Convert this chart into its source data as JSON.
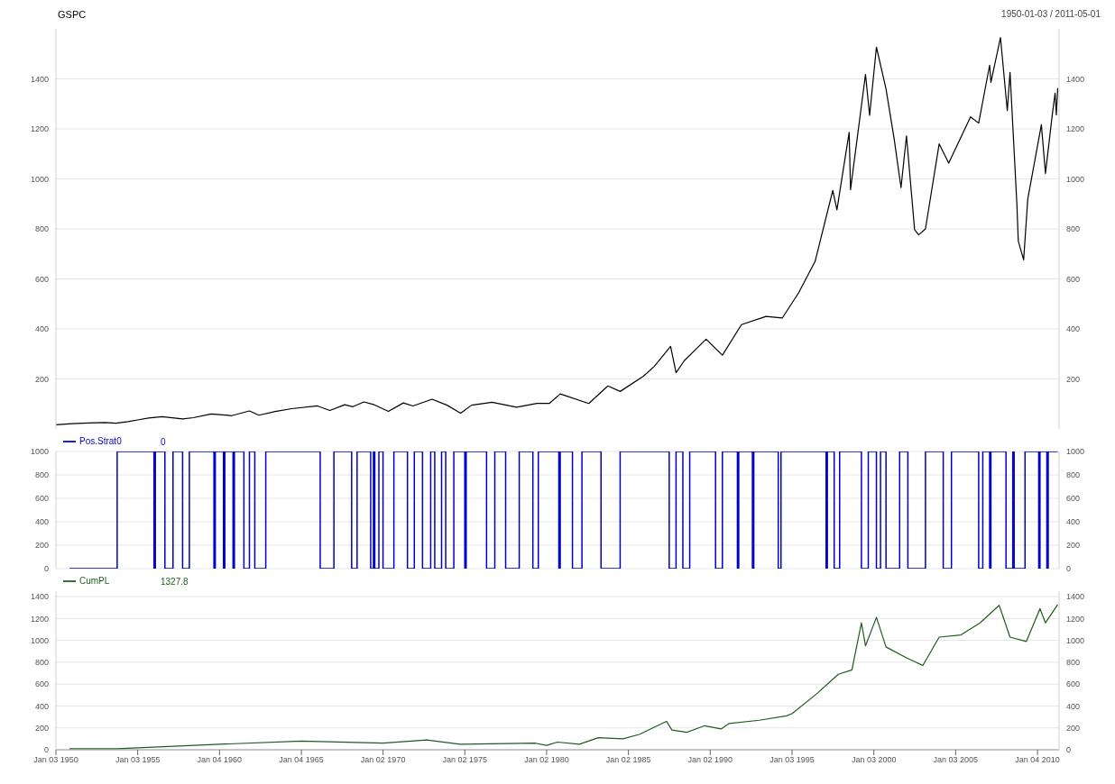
{
  "chart_data": [
    {
      "type": "line",
      "title": "GSPC",
      "subtitle": "1950-01-03 / 2011-05-01",
      "x": [
        "1950-01-03",
        "1951-01",
        "1952-01",
        "1953-01",
        "1953-09",
        "1954-06",
        "1955-01",
        "1955-09",
        "1956-07",
        "1957-10",
        "1958-06",
        "1959-07",
        "1960-10",
        "1961-11",
        "1962-06",
        "1963-06",
        "1964-06",
        "1966-01",
        "1966-10",
        "1967-09",
        "1968-03",
        "1968-11",
        "1969-06",
        "1970-05",
        "1971-04",
        "1971-11",
        "1973-01",
        "1973-12",
        "1974-10",
        "1975-06",
        "1976-09",
        "1978-03",
        "1979-06",
        "1980-03",
        "1980-11",
        "1982-08",
        "1983-10",
        "1984-07",
        "1985-12",
        "1986-08",
        "1987-08",
        "1987-12",
        "1988-06",
        "1989-10",
        "1990-10",
        "1991-12",
        "1993-06",
        "1994-06",
        "1995-06",
        "1996-06",
        "1997-07",
        "1997-10",
        "1998-07",
        "1998-08",
        "1999-07",
        "1999-10",
        "2000-03",
        "2000-10",
        "2001-04",
        "2001-09",
        "2002-01",
        "2002-07",
        "2002-10",
        "2003-03",
        "2004-01",
        "2004-08",
        "2005-12",
        "2006-06",
        "2007-02",
        "2007-03",
        "2007-10",
        "2008-03",
        "2008-05",
        "2008-10",
        "2008-11",
        "2009-03",
        "2009-06",
        "2010-04",
        "2010-07",
        "2010-12",
        "2011-02",
        "2011-03",
        "2011-04"
      ],
      "series": [
        {
          "color": "#000000",
          "values": [
            17,
            21,
            24,
            26,
            23,
            29,
            36,
            44,
            49,
            40,
            45,
            60,
            53,
            72,
            55,
            70,
            81,
            92,
            74,
            97,
            89,
            108,
            98,
            70,
            104,
            92,
            119,
            95,
            63,
            95,
            107,
            87,
            102,
            102,
            140,
            102,
            172,
            150,
            211,
            250,
            330,
            225,
            273,
            359,
            295,
            417,
            450,
            444,
            545,
            670,
            954,
            876,
            1186,
            957,
            1418,
            1254,
            1527,
            1360,
            1160,
            965,
            1172,
            797,
            776,
            800,
            1140,
            1063,
            1248,
            1223,
            1455,
            1386,
            1565,
            1273,
            1426,
            899,
            752,
            676,
            919,
            1217,
            1022,
            1257,
            1343,
            1256,
            1363
          ]
        }
      ],
      "xlim": [
        "1950-01-03",
        "2011-05-01"
      ],
      "ylim": [
        0,
        1600
      ],
      "yticks": [
        200,
        400,
        600,
        800,
        1000,
        1200,
        1400
      ],
      "y2lim": [
        0,
        1600
      ],
      "y2ticks": [
        200,
        400,
        600,
        800,
        1000,
        1200,
        1400
      ],
      "grid": "y",
      "tick_labels": "y",
      "line_style": "solid"
    },
    {
      "type": "step",
      "annotations": [
        "0"
      ],
      "legend": "top left",
      "series": [
        {
          "name": "Pos.Strat0",
          "color": "#0000cc",
          "x": [
            "1950-11",
            "1953-10",
            "1956-01",
            "1956-02",
            "1956-09",
            "1957-03",
            "1957-10",
            "1958-03",
            "1959-09",
            "1959-10",
            "1960-04",
            "1960-05",
            "1960-11",
            "1960-12",
            "1961-07",
            "1961-11",
            "1962-03",
            "1962-11",
            "1966-03",
            "1967-01",
            "1968-02",
            "1968-06",
            "1969-04",
            "1969-06",
            "1969-07",
            "1969-10",
            "1970-01",
            "1970-09",
            "1971-07",
            "1971-12",
            "1972-06",
            "1972-12",
            "1973-03",
            "1973-08",
            "1973-11",
            "1974-05",
            "1975-01",
            "1975-02",
            "1976-05",
            "1976-11",
            "1977-07",
            "1978-05",
            "1979-03",
            "1979-07",
            "1980-10",
            "1980-11",
            "1981-08",
            "1982-03",
            "1983-05",
            "1984-07",
            "1987-07",
            "1987-12",
            "1988-05",
            "1988-10",
            "1990-05",
            "1990-10",
            "1991-09",
            "1991-10",
            "1992-08",
            "1992-09",
            "1994-03",
            "1994-05",
            "1997-02",
            "1997-03",
            "1997-08",
            "1997-12",
            "1999-04",
            "1999-09",
            "2000-03",
            "2000-06",
            "2000-10",
            "2001-08",
            "2002-02",
            "2003-03",
            "2004-04",
            "2004-10",
            "2006-06",
            "2006-09",
            "2007-02",
            "2007-03",
            "2008-02",
            "2008-07",
            "2008-08",
            "2009-04",
            "2010-02",
            "2010-03",
            "2010-08",
            "2010-09",
            "2011-04"
          ],
          "values": [
            0,
            1000,
            0,
            1000,
            0,
            1000,
            0,
            1000,
            0,
            1000,
            0,
            1000,
            0,
            1000,
            0,
            1000,
            0,
            1000,
            0,
            1000,
            0,
            1000,
            0,
            1000,
            0,
            1000,
            0,
            1000,
            0,
            1000,
            0,
            1000,
            0,
            1000,
            0,
            1000,
            0,
            1000,
            0,
            1000,
            0,
            1000,
            0,
            1000,
            0,
            1000,
            0,
            1000,
            0,
            1000,
            0,
            1000,
            0,
            1000,
            0,
            1000,
            0,
            1000,
            0,
            1000,
            0,
            1000,
            0,
            1000,
            0,
            1000,
            0,
            1000,
            0,
            1000,
            0,
            1000,
            0,
            1000,
            0,
            1000,
            0,
            1000,
            0,
            1000,
            0,
            1000,
            0,
            1000,
            0,
            1000,
            0,
            1000,
            1000
          ]
        }
      ],
      "xlim": [
        "1950-01-03",
        "2011-05-01"
      ],
      "ylim": [
        0,
        1000
      ],
      "yticks": [
        0,
        200,
        400,
        600,
        800,
        1000
      ],
      "y2lim": [
        0,
        1000
      ],
      "y2ticks": [
        0,
        200,
        400,
        600,
        800,
        1000
      ],
      "grid": "y",
      "tick_labels": "y",
      "line_style": "solid"
    },
    {
      "type": "line",
      "annotations": [
        "1327.8"
      ],
      "legend": "top left",
      "series": [
        {
          "name": "CumPL",
          "color": "#1e5c1e",
          "x": [
            "1950-11",
            "1953-10",
            "1960-01",
            "1965-01",
            "1970-01",
            "1972-09",
            "1974-10",
            "1979-05",
            "1980-01",
            "1980-09",
            "1982-01",
            "1983-03",
            "1984-09",
            "1985-09",
            "1987-05",
            "1987-09",
            "1988-08",
            "1989-09",
            "1990-09",
            "1991-03",
            "1993-01",
            "1994-09",
            "1995-01",
            "1996-07",
            "1997-11",
            "1998-09",
            "1999-04",
            "1999-07",
            "2000-03",
            "2000-10",
            "2002-01",
            "2003-01",
            "2004-01",
            "2005-05",
            "2006-07",
            "2007-09",
            "2008-05",
            "2009-05",
            "2010-03",
            "2010-07",
            "2011-04"
          ],
          "values": [
            10,
            10,
            50,
            80,
            60,
            90,
            50,
            60,
            40,
            70,
            50,
            110,
            100,
            140,
            260,
            180,
            160,
            220,
            190,
            240,
            270,
            310,
            330,
            510,
            690,
            730,
            1160,
            950,
            1210,
            940,
            840,
            770,
            1030,
            1050,
            1160,
            1320,
            1030,
            990,
            1290,
            1160,
            1327.8
          ]
        }
      ],
      "xlim": [
        "1950-01-03",
        "2011-05-01"
      ],
      "xticks": [
        {
          "value": "1950-01-03",
          "label": "Jan 03 1950"
        },
        {
          "value": "1955-01-03",
          "label": "Jan 03 1955"
        },
        {
          "value": "1960-01-04",
          "label": "Jan 04 1960"
        },
        {
          "value": "1965-01-04",
          "label": "Jan 04 1965"
        },
        {
          "value": "1970-01-02",
          "label": "Jan 02 1970"
        },
        {
          "value": "1975-01-02",
          "label": "Jan 02 1975"
        },
        {
          "value": "1980-01-02",
          "label": "Jan 02 1980"
        },
        {
          "value": "1985-01-02",
          "label": "Jan 02 1985"
        },
        {
          "value": "1990-01-02",
          "label": "Jan 02 1990"
        },
        {
          "value": "1995-01-03",
          "label": "Jan 03 1995"
        },
        {
          "value": "2000-01-03",
          "label": "Jan 03 2000"
        },
        {
          "value": "2005-01-03",
          "label": "Jan 03 2005"
        },
        {
          "value": "2010-01-04",
          "label": "Jan 04 2010"
        }
      ],
      "ylim": [
        0,
        1450
      ],
      "yticks": [
        0,
        200,
        400,
        600,
        800,
        1000,
        1200,
        1400
      ],
      "y2lim": [
        0,
        1450
      ],
      "y2ticks": [
        0,
        200,
        400,
        600,
        800,
        1000,
        1200,
        1400
      ],
      "grid": "y",
      "line_style": "solid"
    }
  ]
}
